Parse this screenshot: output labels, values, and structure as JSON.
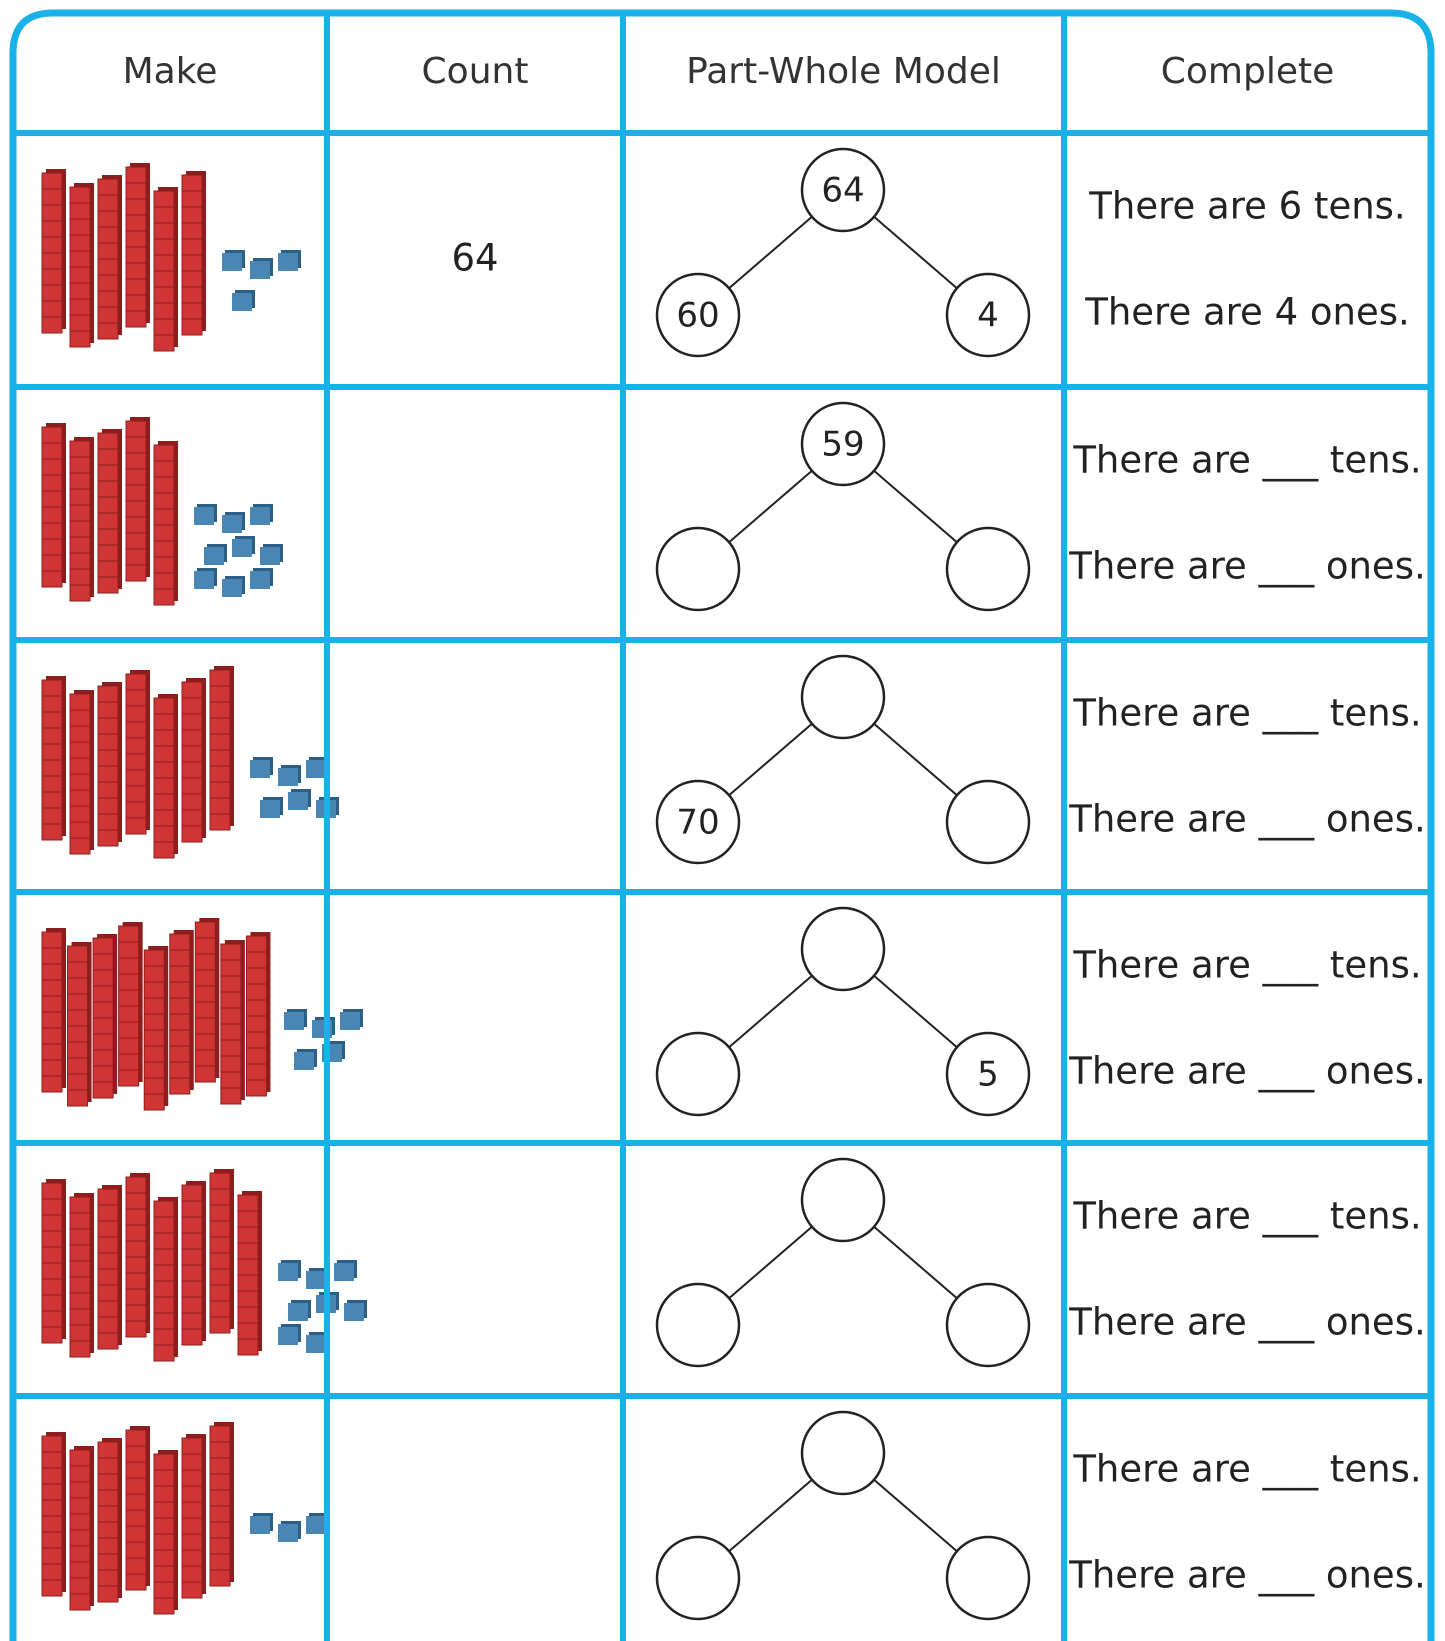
{
  "header": [
    "Make",
    "Count",
    "Part-Whole Model",
    "Complete"
  ],
  "rows": [
    {
      "make": {
        "tens": 6,
        "ones": 4
      },
      "count": "64",
      "whole": "64",
      "parts": [
        "60",
        "4"
      ],
      "complete": [
        "There are 6 tens.",
        "There are 4 ones."
      ]
    },
    {
      "make": {
        "tens": 5,
        "ones": 9
      },
      "count": null,
      "whole": "59",
      "parts": [
        null,
        null
      ],
      "complete": [
        "There are ___ tens.",
        "There are ___ ones."
      ]
    },
    {
      "make": {
        "tens": 7,
        "ones": 6
      },
      "count": null,
      "whole": null,
      "parts": [
        "70",
        null
      ],
      "complete": [
        "There are ___ tens.",
        "There are ___ ones."
      ]
    },
    {
      "make": {
        "tens": 9,
        "ones": 5
      },
      "count": null,
      "whole": null,
      "parts": [
        null,
        "5"
      ],
      "complete": [
        "There are ___ tens.",
        "There are ___ ones."
      ]
    },
    {
      "make": {
        "tens": 8,
        "ones": 8
      },
      "count": null,
      "whole": null,
      "parts": [
        null,
        null
      ],
      "complete": [
        "There are ___ tens.",
        "There are ___ ones."
      ]
    },
    {
      "make": {
        "tens": 7,
        "ones": 3
      },
      "count": null,
      "whole": null,
      "parts": [
        null,
        null
      ],
      "complete": [
        "There are ___ tens.",
        "There are ___ ones."
      ]
    }
  ]
}
